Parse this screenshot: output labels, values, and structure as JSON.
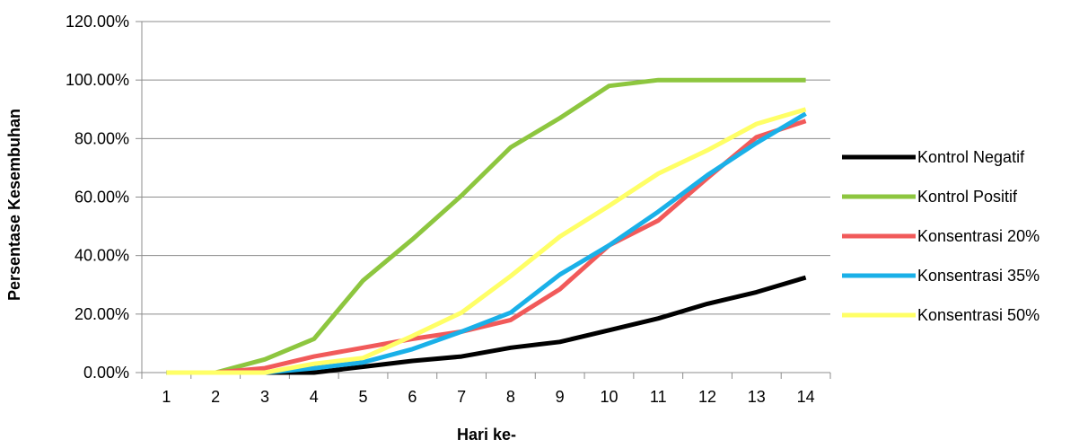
{
  "chart_data": {
    "type": "line",
    "title": "",
    "xlabel": "Hari ke-",
    "ylabel": "Persentase Kesembuhan",
    "ylim": [
      0,
      120
    ],
    "y_ticks": [
      "0.00%",
      "20.00%",
      "40.00%",
      "60.00%",
      "80.00%",
      "100.00%",
      "120.00%"
    ],
    "x": [
      "1",
      "2",
      "3",
      "4",
      "5",
      "6",
      "7",
      "8",
      "9",
      "10",
      "11",
      "12",
      "13",
      "14"
    ],
    "grid": true,
    "legend_position": "right",
    "series": [
      {
        "name": "Kontrol Negatif",
        "color": "#000000",
        "values": [
          0,
          0,
          0,
          0,
          2,
          4,
          5.5,
          8.5,
          10.5,
          14.5,
          18.5,
          23.5,
          27.5,
          32.5
        ]
      },
      {
        "name": "Kontrol Positif",
        "color": "#8dc63f",
        "values": [
          0,
          0,
          4.5,
          11.5,
          31.5,
          45.5,
          60.5,
          77,
          87,
          98,
          100,
          100,
          100,
          100
        ]
      },
      {
        "name": "Konsentrasi 20%",
        "color": "#f15a5a",
        "values": [
          0,
          0,
          1.5,
          5.5,
          8.5,
          11.5,
          14,
          18,
          28.5,
          43.5,
          52,
          66.5,
          80.5,
          86
        ]
      },
      {
        "name": "Konsentrasi 35%",
        "color": "#1ab0e8",
        "values": [
          0,
          0,
          0,
          1.5,
          3.5,
          8,
          14,
          20.5,
          33.5,
          43.5,
          55,
          67.5,
          78.5,
          88.5
        ]
      },
      {
        "name": "Konsentrasi 50%",
        "color": "#ffff66",
        "values": [
          0,
          0,
          0,
          3,
          5,
          12.5,
          20.5,
          33,
          46.5,
          57,
          68,
          76,
          85,
          90
        ]
      }
    ]
  }
}
